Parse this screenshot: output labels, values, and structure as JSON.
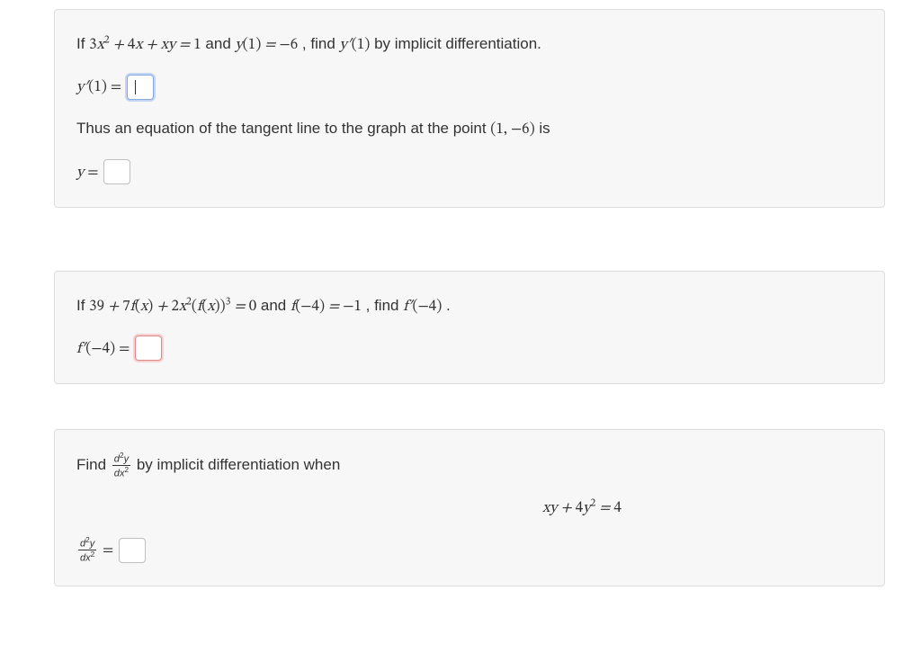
{
  "panel1": {
    "line1_pre": "If ",
    "line1_eq": "3x² + 4x + xy = 1",
    "line1_mid": " and ",
    "line1_eq2": "y(1) = −6",
    "line1_post": ", find ",
    "line1_eq3": "y′(1)",
    "line1_end": " by implicit differentiation.",
    "line2_lhs": "y′(1) = ",
    "line3_pre": "Thus an equation of the tangent line to the graph at the point ",
    "line3_pt": "(1, −6)",
    "line3_post": " is",
    "line4_lhs": "y = "
  },
  "panel2": {
    "line1_pre": "If ",
    "line1_eq": "39 + 7f(x) + 2x²(f(x))³ = 0",
    "line1_mid": " and ",
    "line1_eq2": "f(−4) = −1",
    "line1_post": ", find ",
    "line1_eq3": "f′(−4)",
    "line1_end": ".",
    "line2_lhs": "f′(−4) = "
  },
  "panel3": {
    "find": "Find ",
    "frac_num": "d²y",
    "frac_den": "dx²",
    "by_text": " by implicit differentiation when",
    "equation": "xy + 4y² = 4",
    "ans_eq": " = "
  }
}
